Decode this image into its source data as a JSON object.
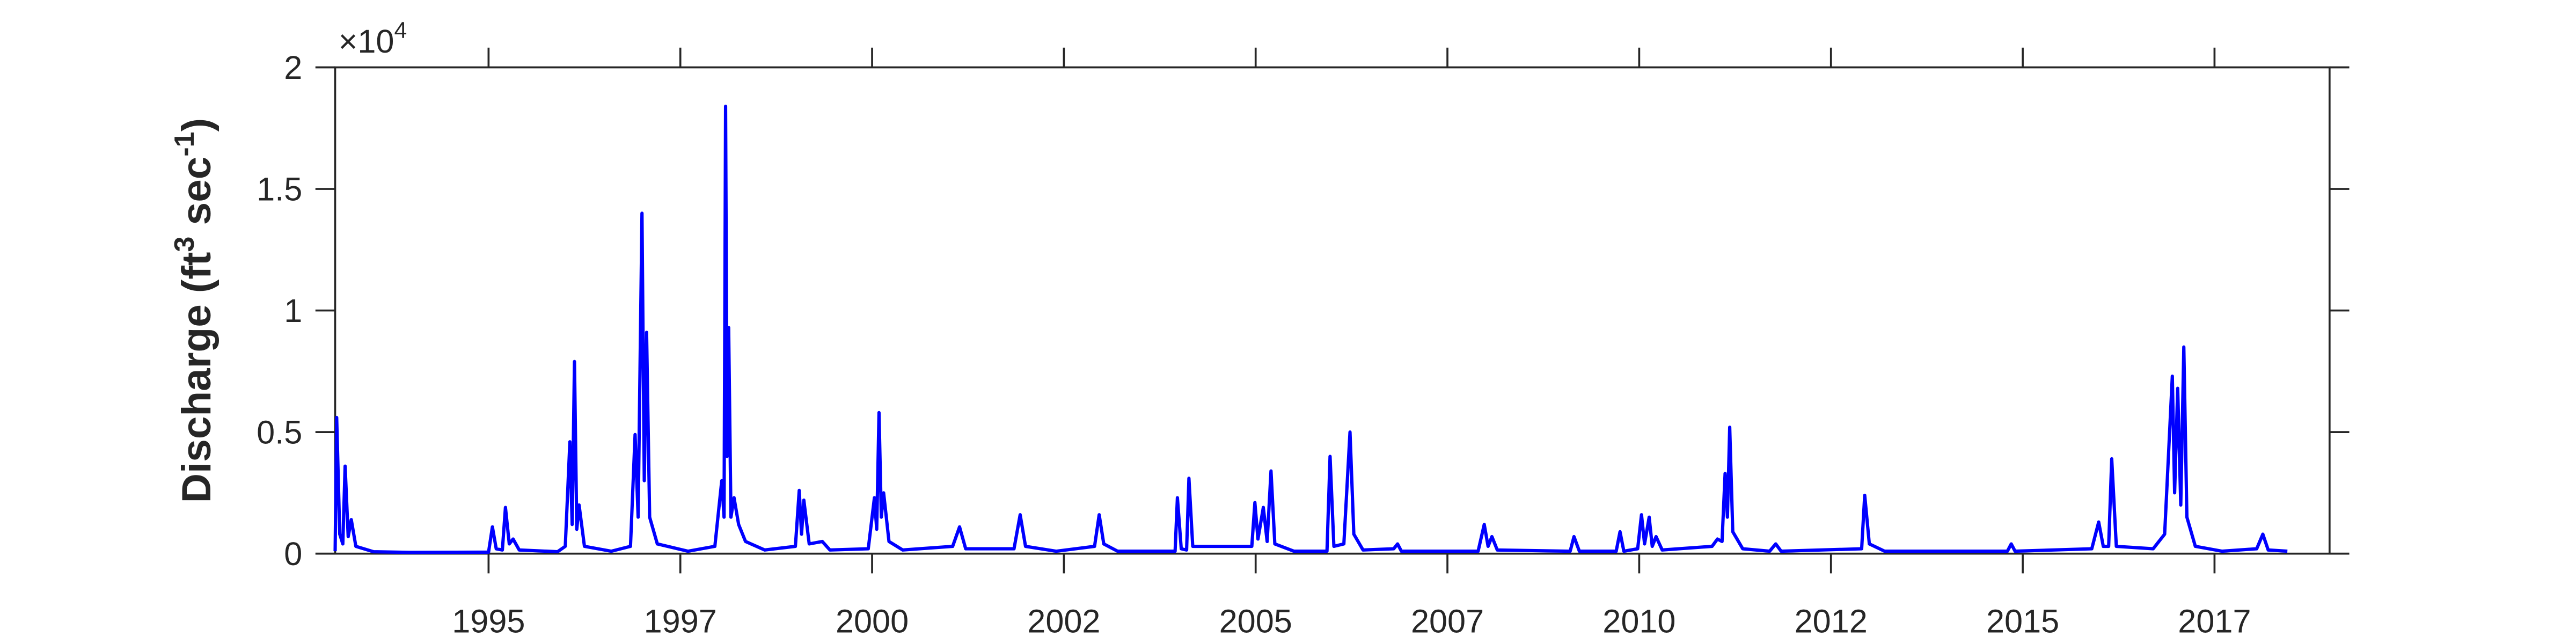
{
  "chart_data": {
    "type": "line",
    "ylabel": [
      "Discharge (ft",
      "3",
      " sec",
      "-1",
      ")"
    ],
    "y_multiplier": [
      "×10",
      "4"
    ],
    "color": "#0000ff",
    "xlim": [
      1993.0,
      2019.0
    ],
    "xticks": [
      {
        "value": 1995.0,
        "label": "1995"
      },
      {
        "value": 1997.5,
        "label": "1997"
      },
      {
        "value": 2000.0,
        "label": "2000"
      },
      {
        "value": 2002.5,
        "label": "2002"
      },
      {
        "value": 2005.0,
        "label": "2005"
      },
      {
        "value": 2007.5,
        "label": "2007"
      },
      {
        "value": 2010.0,
        "label": "2010"
      },
      {
        "value": 2012.5,
        "label": "2012"
      },
      {
        "value": 2015.0,
        "label": "2015"
      },
      {
        "value": 2017.5,
        "label": "2017"
      }
    ],
    "ylim": [
      0,
      20000
    ],
    "yticks": [
      0,
      {
        "value": 5000,
        "label": "0.5"
      },
      {
        "value": 10000,
        "label": "1"
      },
      {
        "value": 15000,
        "label": "1.5"
      },
      {
        "value": 20000,
        "label": "2"
      }
    ],
    "x": [
      1993.0,
      1993.02,
      1993.06,
      1993.1,
      1993.13,
      1993.17,
      1993.21,
      1993.27,
      1993.5,
      1994.0,
      1995.0,
      1995.05,
      1995.1,
      1995.18,
      1995.22,
      1995.27,
      1995.32,
      1995.4,
      1995.9,
      1996.0,
      1996.06,
      1996.09,
      1996.12,
      1996.15,
      1996.18,
      1996.25,
      1996.6,
      1996.85,
      1996.91,
      1996.95,
      1997.0,
      1997.03,
      1997.06,
      1997.1,
      1997.2,
      1997.6,
      1997.95,
      1998.04,
      1998.07,
      1998.09,
      1998.11,
      1998.13,
      1998.16,
      1998.2,
      1998.26,
      1998.35,
      1998.6,
      1999.0,
      1999.05,
      1999.08,
      1999.11,
      1999.18,
      1999.35,
      1999.45,
      1999.95,
      2000.03,
      2000.06,
      2000.09,
      2000.12,
      2000.15,
      2000.22,
      2000.4,
      2001.05,
      2001.14,
      2001.22,
      2001.85,
      2001.93,
      2002.0,
      2002.4,
      2002.9,
      2002.96,
      2003.02,
      2003.2,
      2003.95,
      2003.98,
      2004.03,
      2004.1,
      2004.13,
      2004.18,
      2004.95,
      2004.99,
      2005.03,
      2005.1,
      2005.15,
      2005.2,
      2005.25,
      2005.5,
      2005.93,
      2005.97,
      2006.02,
      2006.15,
      2006.23,
      2006.28,
      2006.4,
      2006.8,
      2006.85,
      2006.9,
      2007.9,
      2007.98,
      2008.03,
      2008.08,
      2008.15,
      2009.1,
      2009.15,
      2009.22,
      2009.7,
      2009.75,
      2009.8,
      2009.98,
      2010.03,
      2010.07,
      2010.13,
      2010.17,
      2010.22,
      2010.3,
      2010.95,
      2011.02,
      2011.08,
      2011.12,
      2011.15,
      2011.18,
      2011.22,
      2011.35,
      2011.7,
      2011.78,
      2011.85,
      2012.9,
      2012.94,
      2013.0,
      2013.2,
      2014.8,
      2014.85,
      2014.9,
      2015.9,
      2015.99,
      2016.05,
      2016.12,
      2016.16,
      2016.22,
      2016.7,
      2016.85,
      2016.95,
      2016.98,
      2017.02,
      2017.06,
      2017.1,
      2017.14,
      2017.25,
      2017.6,
      2018.05,
      2018.13,
      2018.2,
      2018.45
    ],
    "values": [
      100,
      5600,
      800,
      400,
      3600,
      700,
      1400,
      300,
      80,
      50,
      60,
      1100,
      200,
      150,
      1900,
      400,
      600,
      150,
      80,
      300,
      4600,
      1200,
      7900,
      1000,
      2000,
      300,
      100,
      300,
      4900,
      1500,
      14000,
      3000,
      9100,
      1500,
      400,
      100,
      300,
      3000,
      1500,
      18400,
      4000,
      9300,
      1500,
      2300,
      1200,
      500,
      150,
      300,
      2600,
      800,
      2200,
      400,
      500,
      150,
      200,
      2300,
      1000,
      5800,
      1500,
      2500,
      500,
      150,
      300,
      1100,
      200,
      200,
      1600,
      300,
      100,
      300,
      1600,
      400,
      100,
      100,
      2300,
      200,
      150,
      3100,
      300,
      300,
      2100,
      600,
      1900,
      500,
      3400,
      400,
      100,
      100,
      4000,
      300,
      400,
      5000,
      800,
      150,
      200,
      400,
      100,
      100,
      1200,
      300,
      700,
      150,
      100,
      700,
      100,
      100,
      900,
      100,
      200,
      1600,
      400,
      1500,
      300,
      700,
      150,
      300,
      600,
      500,
      3300,
      1500,
      5200,
      900,
      200,
      100,
      400,
      100,
      200,
      2400,
      400,
      100,
      100,
      400,
      100,
      200,
      1300,
      300,
      300,
      3900,
      300,
      200,
      800,
      7300,
      2500,
      6800,
      2000,
      8500,
      1500,
      300,
      100,
      200,
      800,
      150,
      100
    ]
  }
}
